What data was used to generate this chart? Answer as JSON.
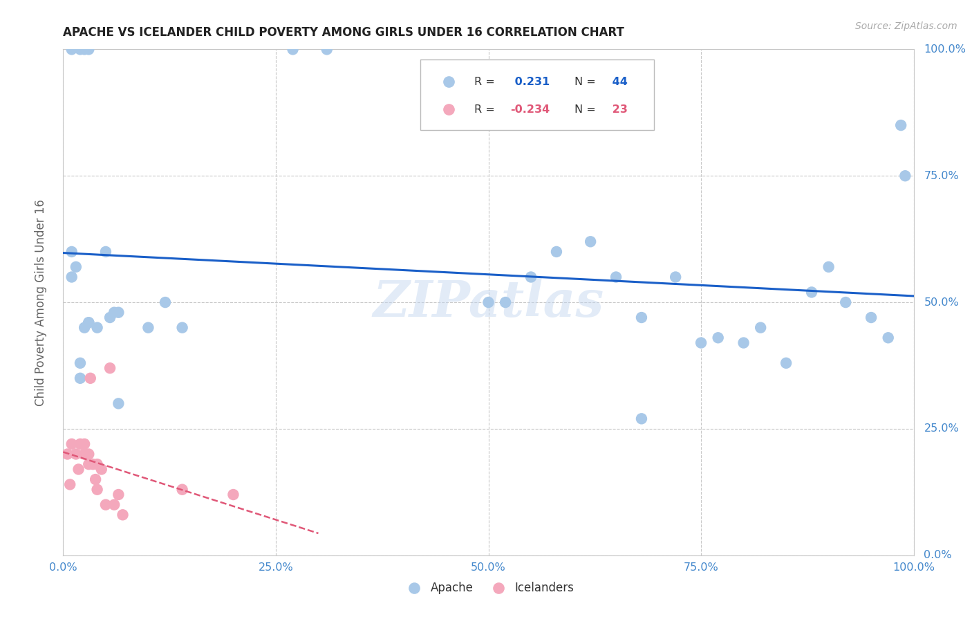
{
  "title": "APACHE VS ICELANDER CHILD POVERTY AMONG GIRLS UNDER 16 CORRELATION CHART",
  "source": "Source: ZipAtlas.com",
  "ylabel": "Child Poverty Among Girls Under 16",
  "xlim": [
    0.0,
    1.0
  ],
  "ylim": [
    0.0,
    1.0
  ],
  "xticks": [
    0.0,
    0.25,
    0.5,
    0.75,
    1.0
  ],
  "yticks": [
    0.0,
    0.25,
    0.5,
    0.75,
    1.0
  ],
  "xtick_labels": [
    "0.0%",
    "25.0%",
    "50.0%",
    "75.0%",
    "100.0%"
  ],
  "ytick_labels": [
    "0.0%",
    "25.0%",
    "50.0%",
    "75.0%",
    "100.0%"
  ],
  "apache_color": "#a8c8e8",
  "icelander_color": "#f4a8bc",
  "apache_line_color": "#1a5fc8",
  "icelander_line_color": "#e05878",
  "R_apache": 0.231,
  "N_apache": 44,
  "R_icelander": -0.234,
  "N_icelander": 23,
  "watermark": "ZIPatlas",
  "apache_x": [
    0.01,
    0.02,
    0.025,
    0.03,
    0.27,
    0.31,
    0.01,
    0.01,
    0.015,
    0.02,
    0.02,
    0.025,
    0.03,
    0.03,
    0.04,
    0.05,
    0.055,
    0.06,
    0.065,
    0.1,
    0.12,
    0.14,
    0.065,
    0.52,
    0.55,
    0.58,
    0.62,
    0.65,
    0.68,
    0.72,
    0.75,
    0.77,
    0.8,
    0.82,
    0.85,
    0.88,
    0.9,
    0.92,
    0.95,
    0.97,
    0.985,
    0.99,
    0.5,
    0.68
  ],
  "apache_y": [
    1.0,
    1.0,
    1.0,
    1.0,
    1.0,
    1.0,
    0.6,
    0.55,
    0.57,
    0.38,
    0.35,
    0.45,
    0.46,
    0.46,
    0.45,
    0.6,
    0.47,
    0.48,
    0.48,
    0.45,
    0.5,
    0.45,
    0.3,
    0.5,
    0.55,
    0.6,
    0.62,
    0.55,
    0.47,
    0.55,
    0.42,
    0.43,
    0.42,
    0.45,
    0.38,
    0.52,
    0.57,
    0.5,
    0.47,
    0.43,
    0.85,
    0.75,
    0.5,
    0.27
  ],
  "icelander_x": [
    0.005,
    0.008,
    0.01,
    0.015,
    0.018,
    0.02,
    0.025,
    0.025,
    0.03,
    0.03,
    0.032,
    0.035,
    0.038,
    0.04,
    0.04,
    0.045,
    0.05,
    0.055,
    0.06,
    0.065,
    0.07,
    0.14,
    0.2
  ],
  "icelander_y": [
    0.2,
    0.14,
    0.22,
    0.2,
    0.17,
    0.22,
    0.22,
    0.2,
    0.2,
    0.18,
    0.35,
    0.18,
    0.15,
    0.18,
    0.13,
    0.17,
    0.1,
    0.37,
    0.1,
    0.12,
    0.08,
    0.13,
    0.12
  ],
  "background_color": "#ffffff",
  "grid_color": "#c8c8c8",
  "title_color": "#222222",
  "axis_label_color": "#666666",
  "tick_label_color": "#4488cc"
}
